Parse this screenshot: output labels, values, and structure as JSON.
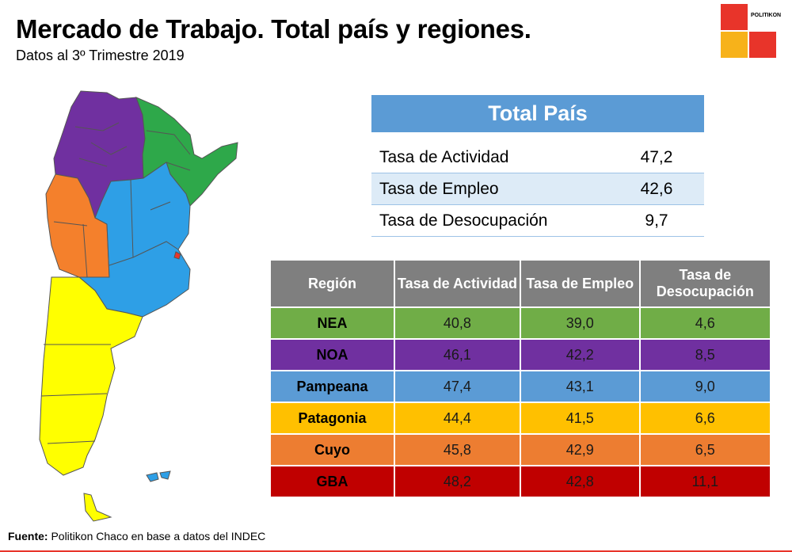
{
  "header": {
    "title": "Mercado de Trabajo. Total país y regiones.",
    "subtitle": "Datos al 3º Trimestre 2019"
  },
  "logo": {
    "text": "POLITIKON",
    "colors": [
      "#e8342a",
      "#f7b21a"
    ]
  },
  "map": {
    "regions": [
      {
        "name": "NOA",
        "color": "#7030a0"
      },
      {
        "name": "NEA",
        "color": "#2ea84a"
      },
      {
        "name": "Cuyo",
        "color": "#f4802c"
      },
      {
        "name": "Pampeana",
        "color": "#2e9fe6"
      },
      {
        "name": "Patagonia",
        "color": "#ffff00"
      },
      {
        "name": "GBA",
        "color": "#e8342a"
      }
    ]
  },
  "chart_data": [
    {
      "type": "table",
      "title": "Total País",
      "rows": [
        {
          "label": "Tasa de Actividad",
          "value": "47,2"
        },
        {
          "label": "Tasa de Empleo",
          "value": "42,6"
        },
        {
          "label": "Tasa de Desocupación",
          "value": "9,7"
        }
      ]
    },
    {
      "type": "table",
      "columns": [
        "Región",
        "Tasa de Actividad",
        "Tasa de Empleo",
        "Tasa de Desocupación"
      ],
      "rows": [
        {
          "region": "NEA",
          "actividad": "40,8",
          "empleo": "39,0",
          "desocupacion": "4,6",
          "color": "#70ad47"
        },
        {
          "region": "NOA",
          "actividad": "46,1",
          "empleo": "42,2",
          "desocupacion": "8,5",
          "color": "#7030a0"
        },
        {
          "region": "Pampeana",
          "actividad": "47,4",
          "empleo": "43,1",
          "desocupacion": "9,0",
          "color": "#5b9bd5"
        },
        {
          "region": "Patagonia",
          "actividad": "44,4",
          "empleo": "41,5",
          "desocupacion": "6,6",
          "color": "#ffc000"
        },
        {
          "region": "Cuyo",
          "actividad": "45,8",
          "empleo": "42,9",
          "desocupacion": "6,5",
          "color": "#ed7d31"
        },
        {
          "region": "GBA",
          "actividad": "48,2",
          "empleo": "42,8",
          "desocupacion": "11,1",
          "color": "#c00000"
        }
      ]
    }
  ],
  "footer": {
    "label": "Fuente:",
    "text": " Politikon Chaco en base a datos del INDEC"
  }
}
